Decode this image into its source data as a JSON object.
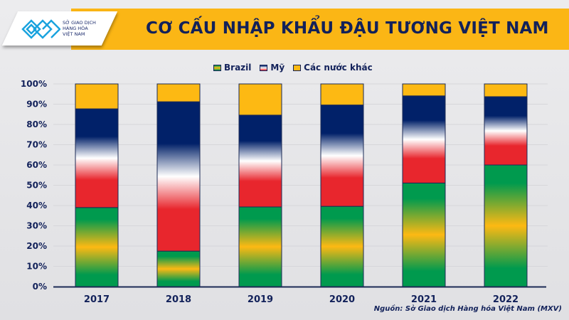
{
  "header": {
    "title": "CƠ CẤU NHẬP KHẨU ĐẬU TƯƠNG VIỆT NAM"
  },
  "logo": {
    "lines": [
      "SỞ GIAO DỊCH",
      "HÀNG HÓA",
      "VIỆT NAM"
    ]
  },
  "source": "Nguồn: Sở Giao dịch Hàng hóa Việt Nam (MXV)",
  "chart_data": {
    "type": "bar",
    "stacked": true,
    "title": "CƠ CẤU NHẬP KHẨU ĐẬU TƯƠNG VIỆT NAM",
    "categories": [
      "2017",
      "2018",
      "2019",
      "2020",
      "2021",
      "2022"
    ],
    "series": [
      {
        "name": "Brazil",
        "values": [
          39,
          17.5,
          39.3,
          39.6,
          51.1,
          60
        ],
        "color": "#009a4e",
        "accent": "#fdb913"
      },
      {
        "name": "Mỹ",
        "values": [
          48.7,
          73.7,
          45.3,
          50,
          43,
          33.7
        ],
        "color": "#012169",
        "accent": "#e8262d"
      },
      {
        "name": "Các nước khác",
        "values": [
          12.3,
          8.8,
          15.4,
          10.4,
          5.9,
          6.3
        ],
        "color": "#fdb913"
      }
    ],
    "yticks": [
      "0%",
      "10%",
      "20%",
      "30%",
      "40%",
      "50%",
      "60%",
      "70%",
      "80%",
      "90%",
      "100%"
    ],
    "ylim": [
      0,
      100
    ],
    "legend": "top",
    "grid": true
  }
}
